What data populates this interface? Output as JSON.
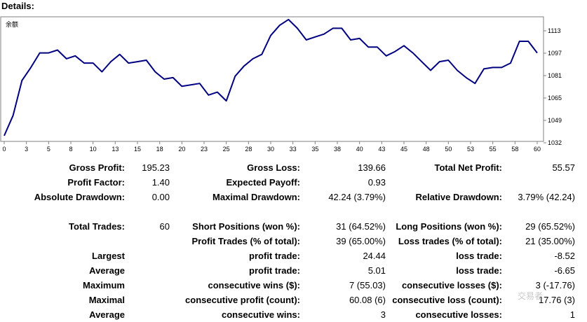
{
  "window": {
    "title": "Details:"
  },
  "chart_data": {
    "type": "line",
    "title": "余额",
    "x_ticks": [
      "0",
      "3",
      "5",
      "8",
      "10",
      "13",
      "15",
      "18",
      "20",
      "23",
      "25",
      "28",
      "30",
      "33",
      "35",
      "38",
      "40",
      "43",
      "45",
      "48",
      "50",
      "53",
      "55",
      "58",
      "60"
    ],
    "y_ticks": [
      "1113",
      "1097",
      "1081",
      "1065",
      "1049",
      "1032"
    ],
    "ylim": [
      1032,
      1113
    ],
    "xlim": [
      0,
      60
    ],
    "color": "#000080",
    "series": [
      {
        "x": [
          0,
          1,
          2,
          3,
          4,
          5,
          6,
          7,
          8,
          9,
          10,
          11,
          12,
          13,
          14,
          15,
          16,
          17,
          18,
          19,
          20,
          21,
          22,
          23,
          24,
          25,
          26,
          27,
          28,
          29,
          30,
          31,
          32,
          33,
          34,
          35,
          36,
          37,
          38,
          39,
          40,
          41,
          42,
          43,
          44,
          45,
          46,
          47,
          48,
          49,
          50,
          51,
          52,
          53,
          54,
          55,
          56,
          57,
          58,
          59,
          60
        ],
        "y": [
          1034,
          1048,
          1072,
          1081,
          1091,
          1091,
          1093,
          1087,
          1089,
          1084,
          1084,
          1078,
          1085,
          1090,
          1084,
          1085,
          1086,
          1078,
          1073,
          1074,
          1068,
          1069,
          1070,
          1062,
          1064,
          1058,
          1075,
          1082,
          1087,
          1090,
          1103,
          1110,
          1114,
          1108,
          1100,
          1102,
          1104,
          1108,
          1108,
          1100,
          1101,
          1095,
          1095,
          1089,
          1092,
          1096,
          1091,
          1085,
          1079,
          1085,
          1086,
          1079,
          1074,
          1070,
          1080,
          1081,
          1081,
          1084,
          1099,
          1099,
          1091
        ]
      }
    ]
  },
  "stats": {
    "rows": [
      [
        "Gross Profit:",
        "195.23",
        "Gross Loss:",
        "139.66",
        "Total Net Profit:",
        "55.57"
      ],
      [
        "Profit Factor:",
        "1.40",
        "Expected Payoff:",
        "0.93",
        "",
        ""
      ],
      [
        "Absolute Drawdown:",
        "0.00",
        "Maximal Drawdown:",
        "42.24 (3.79%)",
        "Relative Drawdown:",
        "3.79% (42.24)"
      ],
      [
        "Total Trades:",
        "60",
        "Short Positions (won %):",
        "31 (64.52%)",
        "Long Positions (won %):",
        "29 (65.52%)"
      ],
      [
        "",
        "",
        "Profit Trades (% of total):",
        "39 (65.00%)",
        "Loss trades (% of total):",
        "21 (35.00%)"
      ],
      [
        "Largest",
        "",
        "profit trade:",
        "24.44",
        "loss trade:",
        "-8.52"
      ],
      [
        "Average",
        "",
        "profit trade:",
        "5.01",
        "loss trade:",
        "-6.65"
      ],
      [
        "Maximum",
        "",
        "consecutive wins ($):",
        "7 (55.03)",
        "consecutive losses ($):",
        "3 (-17.76)"
      ],
      [
        "Maximal",
        "",
        "consecutive profit (count):",
        "60.08 (6)",
        "consecutive loss (count):",
        "17.76 (3)"
      ],
      [
        "Average",
        "",
        "consecutive wins:",
        "3",
        "consecutive losses:",
        "1"
      ]
    ]
  },
  "watermark": "交易者"
}
